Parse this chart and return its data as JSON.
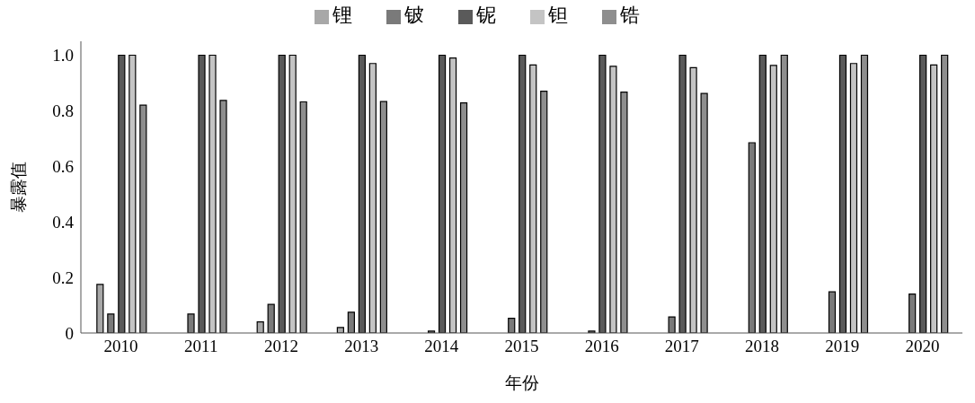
{
  "chart_data": {
    "type": "bar",
    "xlabel": "年份",
    "ylabel": "暴露值",
    "categories": [
      "2010",
      "2011",
      "2012",
      "2013",
      "2014",
      "2015",
      "2016",
      "2017",
      "2018",
      "2019",
      "2020"
    ],
    "series": [
      {
        "name": "锂",
        "color": "#a8a8a8",
        "values": [
          0.175,
          0,
          0.04,
          0.02,
          0,
          0,
          0,
          0,
          0,
          0,
          0
        ]
      },
      {
        "name": "铍",
        "color": "#7a7a7a",
        "values": [
          0.068,
          0.068,
          0.103,
          0.075,
          0.007,
          0.053,
          0.007,
          0.058,
          0.685,
          0.148,
          0.14
        ]
      },
      {
        "name": "铌",
        "color": "#5a5a5a",
        "values": [
          1.0,
          1.0,
          1.0,
          1.0,
          1.0,
          1.0,
          1.0,
          1.0,
          1.0,
          1.0,
          1.0
        ]
      },
      {
        "name": "钽",
        "color": "#c4c4c4",
        "values": [
          1.0,
          1.0,
          1.0,
          0.97,
          0.99,
          0.965,
          0.96,
          0.955,
          0.963,
          0.97,
          0.965
        ]
      },
      {
        "name": "锆",
        "color": "#8e8e8e",
        "values": [
          0.82,
          0.837,
          0.832,
          0.833,
          0.828,
          0.87,
          0.867,
          0.862,
          1.0,
          1.0,
          1.0
        ]
      }
    ],
    "ylim": [
      0,
      1.05
    ],
    "yticks": [
      0,
      0.2,
      0.4,
      0.6,
      0.8,
      {
        "value": 1.0,
        "label": "1.0"
      }
    ],
    "grid": false,
    "legend": "top"
  }
}
